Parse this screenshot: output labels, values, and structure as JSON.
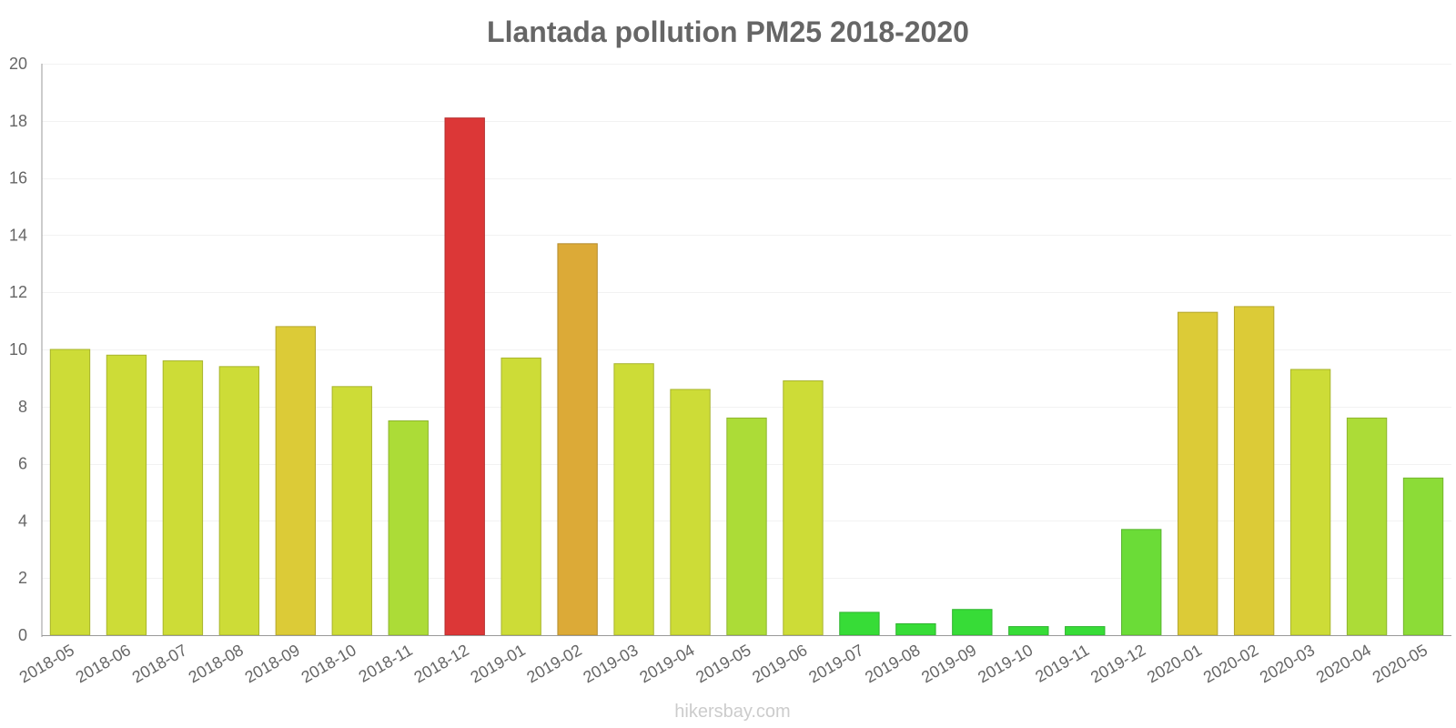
{
  "chart_data": {
    "type": "bar",
    "title": "Llantada pollution PM25 2018-2020",
    "xlabel": "",
    "ylabel": "",
    "ylim": [
      0,
      20
    ],
    "yticks": [
      0,
      2,
      4,
      6,
      8,
      10,
      12,
      14,
      16,
      18,
      20
    ],
    "grid": true,
    "legend": "none",
    "categories": [
      "2018-05",
      "2018-06",
      "2018-07",
      "2018-08",
      "2018-09",
      "2018-10",
      "2018-11",
      "2018-12",
      "2019-01",
      "2019-02",
      "2019-03",
      "2019-04",
      "2019-05",
      "2019-06",
      "2019-07",
      "2019-08",
      "2019-09",
      "2019-10",
      "2019-11",
      "2019-12",
      "2020-01",
      "2020-02",
      "2020-03",
      "2020-04",
      "2020-05"
    ],
    "values": [
      10.0,
      9.8,
      9.6,
      9.4,
      10.8,
      8.7,
      7.5,
      18.1,
      9.7,
      13.7,
      9.5,
      8.6,
      7.6,
      8.9,
      0.8,
      0.4,
      0.9,
      0.3,
      0.3,
      3.7,
      11.3,
      11.5,
      9.3,
      7.6,
      5.5
    ],
    "colors": [
      "#cddc37",
      "#cddc37",
      "#cddc37",
      "#cddc37",
      "#dccb37",
      "#cddc37",
      "#acdc37",
      "#dc3737",
      "#cddc37",
      "#dcaa37",
      "#cddc37",
      "#cddc37",
      "#acdc37",
      "#cddc37",
      "#37dc37",
      "#37dc37",
      "#37dc37",
      "#37dc37",
      "#37dc37",
      "#6bdc37",
      "#dccb37",
      "#dccb37",
      "#cddc37",
      "#acdc37",
      "#8cdc37"
    ]
  },
  "source": "hikersbay.com"
}
